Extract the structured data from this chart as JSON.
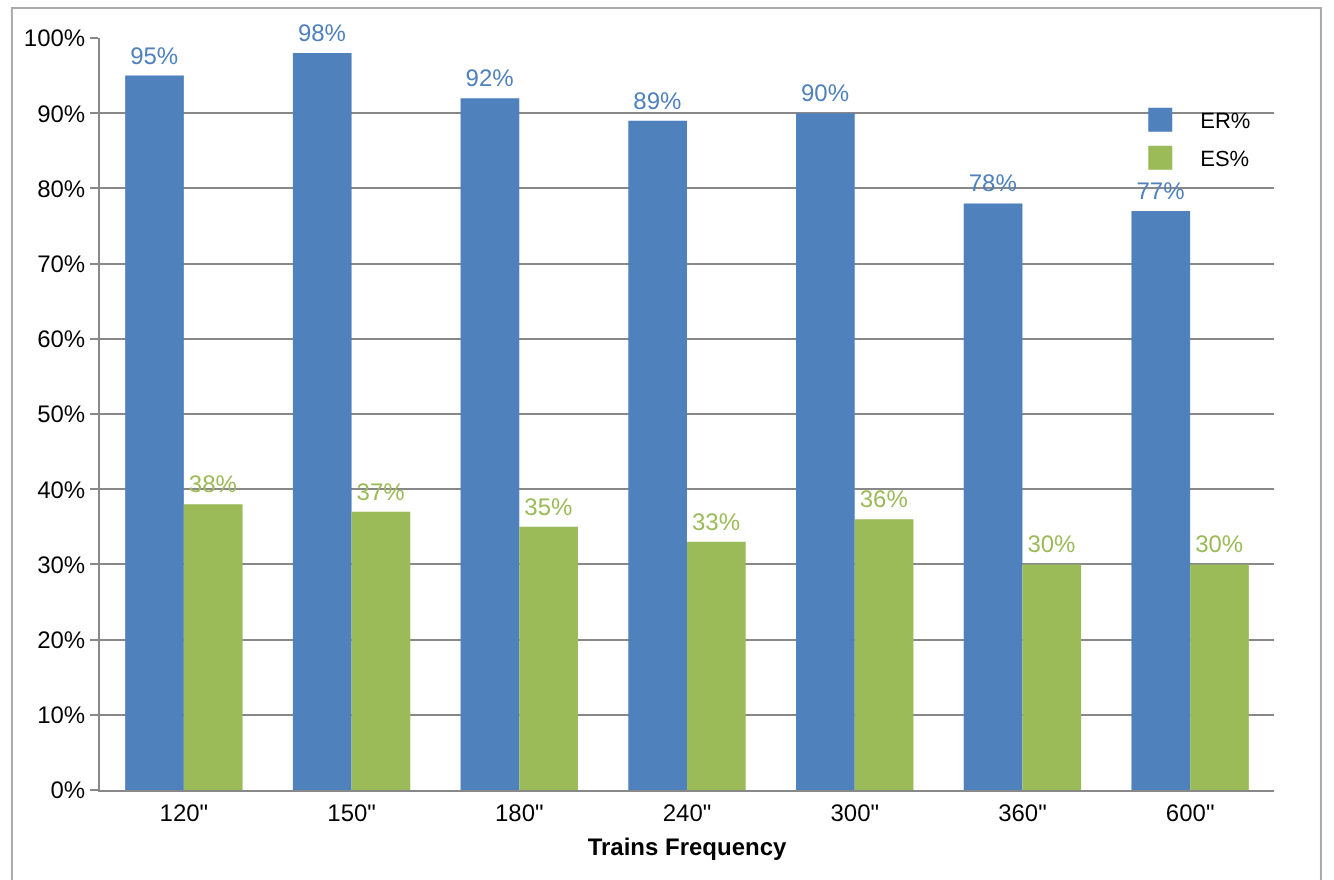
{
  "chart_data": {
    "type": "bar",
    "xlabel": "Trains Frequency",
    "categories": [
      "120\"",
      "150\"",
      "180\"",
      "240\"",
      "300\"",
      "360\"",
      "600\""
    ],
    "series": [
      {
        "name": "ER%",
        "color": "#4f81bd",
        "values": [
          95,
          98,
          92,
          89,
          90,
          78,
          77
        ],
        "value_labels": [
          "95%",
          "98%",
          "92%",
          "89%",
          "90%",
          "78%",
          "77%"
        ]
      },
      {
        "name": "ES%",
        "color": "#9bbb59",
        "values": [
          38,
          37,
          35,
          33,
          36,
          30,
          30
        ],
        "value_labels": [
          "38%",
          "37%",
          "35%",
          "33%",
          "36%",
          "30%",
          "30%"
        ]
      }
    ],
    "ylim": [
      0,
      100
    ],
    "yticks": [
      {
        "value": 0,
        "label": "0%"
      },
      {
        "value": 10,
        "label": "10%"
      },
      {
        "value": 20,
        "label": "20%"
      },
      {
        "value": 30,
        "label": "30%"
      },
      {
        "value": 40,
        "label": "40%"
      },
      {
        "value": 50,
        "label": "50%"
      },
      {
        "value": 60,
        "label": "60%"
      },
      {
        "value": 70,
        "label": "70%"
      },
      {
        "value": 80,
        "label": "80%"
      },
      {
        "value": 90,
        "label": "90%"
      },
      {
        "value": 100,
        "label": "100%"
      }
    ],
    "grid": "y",
    "legend": "top right"
  }
}
